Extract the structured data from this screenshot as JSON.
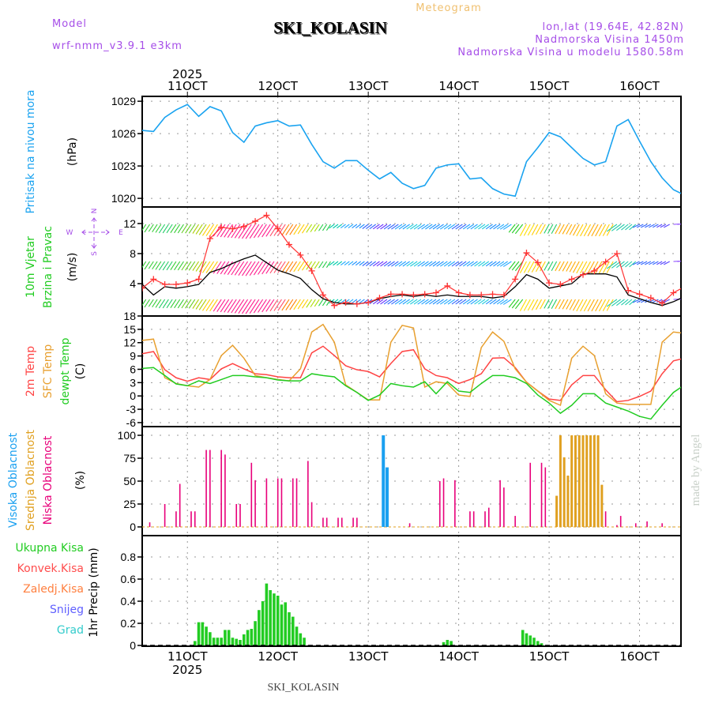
{
  "header": {
    "meteogram": "Meteogram",
    "model_label": "Model",
    "model_name": "wrf-nmm_v3.9.1  e3km",
    "station": "SKI_KOLASIN",
    "lonlat": "lon,lat (19.64E, 42.82N)",
    "elevation": "Nadmorska Visina 1450m",
    "model_elevation": "Nadmorska Visina u modelu 1580.58m",
    "footer_station": "SKI_KOLASIN",
    "credit": "made by Angel"
  },
  "colors": {
    "purple": "#a64ee8",
    "orange": "#f0b860",
    "pressure": "#1aa3f0",
    "green": "#22cc22",
    "red": "#ff4444",
    "sfc": "#e8a030",
    "pink": "#e8007a",
    "mid_cloud": "#e0a020",
    "high_cloud": "#1aa0f0"
  },
  "labels": {
    "pressure": "Pritisak na nivou mora",
    "pressure_unit": "(hPa)",
    "wind1": "10m Vjetar",
    "wind2": "Brzina i Pravac",
    "wind_unit": "(m/s)",
    "compass_n": "N",
    "compass_s": "S",
    "compass_w": "W",
    "compass_e": "E",
    "temp_2m": "2m Temp",
    "temp_sfc": "SFC Temp",
    "temp_dew": "dewpt Temp",
    "temp_unit": "(C)",
    "cloud_high": "Visoka Oblacnost",
    "cloud_mid": "Srednja Oblacnost",
    "cloud_low": "Niska Oblacnost",
    "cloud_unit": "(%)",
    "precip_total": "Ukupna  Kisa",
    "precip_conv": "Konvek.Kisa",
    "precip_frz": "Zaledj.Kisa",
    "precip_snow": "Snijeg",
    "precip_hail": "Grad",
    "precip_unit": "1hr Precip (mm)"
  },
  "chart_data": {
    "type": "line",
    "x_unit": "hours from start of axis (step 3h)",
    "xlim": [
      0,
      143
    ],
    "year": "2025",
    "date_ticks": [
      {
        "hour": 12,
        "label": "11OCT"
      },
      {
        "hour": 36,
        "label": "12OCT"
      },
      {
        "hour": 60,
        "label": "13OCT"
      },
      {
        "hour": 84,
        "label": "14OCT"
      },
      {
        "hour": 108,
        "label": "15OCT"
      },
      {
        "hour": 132,
        "label": "16OCT"
      }
    ],
    "panels": {
      "pressure": {
        "ylabel": "Pritisak na nivou mora (hPa)",
        "ylim": [
          1019.2,
          1029.45
        ],
        "ticks": [
          1020,
          1023,
          1026,
          1029
        ],
        "series": [
          {
            "name": "MSLP",
            "color": "#1aa3f0",
            "values": [
              1026.3,
              1026.2,
              1027.5,
              1028.2,
              1028.7,
              1027.6,
              1028.5,
              1028.1,
              1026.1,
              1025.2,
              1026.7,
              1027.0,
              1027.2,
              1026.7,
              1026.8,
              1025.0,
              1023.4,
              1022.8,
              1023.5,
              1023.5,
              1022.6,
              1021.8,
              1022.4,
              1021.4,
              1020.9,
              1021.2,
              1022.8,
              1023.1,
              1023.2,
              1021.8,
              1021.9,
              1020.9,
              1020.4,
              1020.2,
              1023.4,
              1024.7,
              1026.1,
              1025.7,
              1024.7,
              1023.7,
              1023.1,
              1023.4,
              1026.7,
              1027.3,
              1025.3,
              1023.4,
              1021.9,
              1020.8,
              1020.3
            ]
          }
        ]
      },
      "wind": {
        "ylabel": "10m Vjetar Brzina i Pravac (m/s)",
        "ylim": [
          -0.3,
          14.2
        ],
        "ticks": [
          4,
          8,
          12
        ],
        "speed": {
          "name": "speed",
          "color": "#000000",
          "values": [
            3.9,
            2.5,
            3.6,
            3.4,
            3.6,
            3.9,
            5.5,
            6.0,
            6.7,
            7.3,
            7.8,
            6.8,
            5.8,
            5.3,
            4.7,
            3.2,
            2.0,
            1.5,
            1.3,
            1.3,
            1.5,
            2.0,
            2.3,
            2.5,
            2.3,
            2.5,
            2.3,
            2.5,
            2.3,
            2.3,
            2.3,
            2.1,
            2.3,
            3.6,
            5.2,
            4.6,
            3.4,
            3.7,
            4.0,
            5.3,
            5.3,
            5.3,
            4.9,
            2.5,
            2.0,
            1.5,
            1.1,
            1.6,
            2.3
          ]
        },
        "gust": {
          "name": "gust",
          "color": "#ff3333",
          "values": [
            3.4,
            4.6,
            3.9,
            3.9,
            4.1,
            4.6,
            10.0,
            11.5,
            11.3,
            11.6,
            12.3,
            13.1,
            11.3,
            9.2,
            7.8,
            5.7,
            2.5,
            1.1,
            1.5,
            1.3,
            1.5,
            2.1,
            2.6,
            2.6,
            2.5,
            2.6,
            2.8,
            3.7,
            2.8,
            2.5,
            2.5,
            2.6,
            2.5,
            4.6,
            8.1,
            6.8,
            4.1,
            3.9,
            4.6,
            5.2,
            5.7,
            6.9,
            8.0,
            3.1,
            2.6,
            2.1,
            1.4,
            2.8,
            3.6
          ]
        },
        "direction_deg": [
          40,
          40,
          40,
          40,
          40,
          40,
          40,
          40,
          40,
          40,
          40,
          40,
          40,
          40,
          40,
          40,
          40,
          60,
          60,
          60,
          75,
          75,
          75,
          75,
          75,
          75,
          75,
          75,
          75,
          75,
          75,
          75,
          75,
          45,
          35,
          35,
          35,
          35,
          35,
          35,
          35,
          35,
          70,
          70,
          85,
          85,
          85,
          250,
          250
        ],
        "barb_colors": [
          "#33cc33",
          "#33cc33",
          "#22cc66",
          "#33cc33",
          "#66cc22",
          "#aacc00",
          "#ffcc00",
          "#ff1a8c",
          "#ff1a8c",
          "#ff1a8c",
          "#ff1a8c",
          "#ff1a8c",
          "#ff4d6a",
          "#ff7f00",
          "#ffcc00",
          "#aadd00",
          "#22cc44",
          "#00ccaa",
          "#22aaff",
          "#1e90ff",
          "#3366ff",
          "#6633ff",
          "#3366ff",
          "#1ea0ff",
          "#22ccdd",
          "#1ea0ff",
          "#1e90ff",
          "#22aaff",
          "#3366ff",
          "#1ea0ff",
          "#22ccdd",
          "#1e90ff",
          "#22aaff",
          "#22cc22",
          "#ffdd00",
          "#ffcc00",
          "#22cc66",
          "#ffaa00",
          "#ffaa00",
          "#ffcc00",
          "#ffaa00",
          "#ffcc00",
          "#22ccaa",
          "#22ccaa",
          "#3366ff",
          "#3366ff",
          "#5544ff",
          "#8844ff",
          "#8844ff"
        ]
      },
      "temperature": {
        "ylabel": "(C)",
        "ylim": [
          -6.9,
          18
        ],
        "ticks": [
          -6,
          -3,
          0,
          3,
          6,
          9,
          12,
          15,
          18
        ],
        "series": [
          {
            "name": "2m Temp",
            "color": "#ff4444",
            "values": [
              9.5,
              10.0,
              5.9,
              4.1,
              3.3,
              4.1,
              3.7,
              6.1,
              7.3,
              6.1,
              5.0,
              4.8,
              4.3,
              4.1,
              4.1,
              9.7,
              11.2,
              9.1,
              6.8,
              5.9,
              5.5,
              4.3,
              7.3,
              10.0,
              10.4,
              6.1,
              4.6,
              4.1,
              2.8,
              3.7,
              5.0,
              8.5,
              8.6,
              6.4,
              3.1,
              1.1,
              -0.7,
              -1.0,
              2.5,
              4.6,
              4.6,
              1.4,
              -1.3,
              -1.0,
              -0.1,
              1.1,
              5.0,
              7.9,
              8.5
            ]
          },
          {
            "name": "SFC Temp",
            "color": "#e8a030",
            "values": [
              12.5,
              12.8,
              4.1,
              2.8,
              2.3,
              2.0,
              3.7,
              9.1,
              11.4,
              8.5,
              4.6,
              4.1,
              3.7,
              3.4,
              6.1,
              14.4,
              16.1,
              12.1,
              2.5,
              0.8,
              -0.9,
              -0.9,
              12.1,
              15.9,
              15.3,
              2.0,
              3.2,
              2.8,
              0.2,
              -0.1,
              10.9,
              14.4,
              12.3,
              6.1,
              3.1,
              1.1,
              -1.0,
              -2.1,
              8.5,
              11.2,
              9.1,
              0.5,
              -1.6,
              -1.9,
              -1.9,
              -1.9,
              12.1,
              14.4,
              14.1
            ]
          },
          {
            "name": "dewpt Temp",
            "color": "#22cc22",
            "values": [
              6.2,
              6.4,
              4.6,
              2.7,
              2.3,
              3.4,
              2.8,
              3.7,
              4.6,
              4.6,
              4.3,
              4.1,
              3.6,
              3.4,
              3.4,
              5.0,
              4.6,
              4.3,
              2.3,
              0.8,
              -1.0,
              0.2,
              2.8,
              2.3,
              2.0,
              3.2,
              0.5,
              3.2,
              1.1,
              0.8,
              2.8,
              4.6,
              4.6,
              4.1,
              2.8,
              0.2,
              -1.6,
              -3.9,
              -2.1,
              0.5,
              0.5,
              -1.6,
              -2.5,
              -3.4,
              -4.6,
              -5.2,
              -2.1,
              0.8,
              2.5
            ]
          }
        ]
      },
      "cloud": {
        "type": "bar",
        "ylabel": "(%)",
        "ylim": [
          -9.5,
          109.5
        ],
        "ticks": [
          0,
          25,
          50,
          75,
          100
        ],
        "low": {
          "color": "#e8007a",
          "bars": [
            [
              2,
              5
            ],
            [
              6,
              25
            ],
            [
              9,
              17
            ],
            [
              10,
              47
            ],
            [
              13,
              17
            ],
            [
              14,
              17
            ],
            [
              17,
              84
            ],
            [
              18,
              84
            ],
            [
              21,
              84
            ],
            [
              22,
              79
            ],
            [
              25,
              25
            ],
            [
              26,
              25
            ],
            [
              29,
              70
            ],
            [
              30,
              51
            ],
            [
              33,
              53
            ],
            [
              36,
              53
            ],
            [
              37,
              53
            ],
            [
              40,
              53
            ],
            [
              41,
              53
            ],
            [
              44,
              72
            ],
            [
              45,
              27
            ],
            [
              48,
              10
            ],
            [
              49,
              10
            ],
            [
              52,
              10
            ],
            [
              53,
              10
            ],
            [
              56,
              10
            ],
            [
              57,
              10
            ],
            [
              71,
              4
            ],
            [
              79,
              50
            ],
            [
              80,
              53
            ],
            [
              83,
              51
            ],
            [
              87,
              17
            ],
            [
              88,
              17
            ],
            [
              91,
              17
            ],
            [
              92,
              21
            ],
            [
              95,
              51
            ],
            [
              96,
              43
            ],
            [
              99,
              12
            ],
            [
              103,
              70
            ],
            [
              106,
              70
            ],
            [
              107,
              65
            ],
            [
              110,
              16
            ],
            [
              111,
              16
            ],
            [
              119,
              43
            ],
            [
              122,
              17
            ],
            [
              123,
              17
            ],
            [
              126,
              2
            ],
            [
              127,
              12
            ],
            [
              131,
              4
            ],
            [
              134,
              6
            ],
            [
              138,
              4
            ]
          ]
        },
        "mid": {
          "color": "#e0a020",
          "bars": [
            [
              110,
              34
            ],
            [
              111,
              100
            ],
            [
              112,
              76
            ],
            [
              113,
              56
            ],
            [
              114,
              100
            ],
            [
              115,
              100
            ],
            [
              116,
              100
            ],
            [
              117,
              100
            ],
            [
              118,
              100
            ],
            [
              119,
              100
            ],
            [
              120,
              100
            ],
            [
              121,
              100
            ],
            [
              122,
              46
            ]
          ]
        },
        "high": {
          "color": "#1aa0f0",
          "bars": [
            [
              64,
              100
            ],
            [
              65,
              65
            ]
          ]
        }
      },
      "precip": {
        "type": "bar",
        "ylabel": "1hr Precip (mm)",
        "ylim": [
          -0.007,
          0.993
        ],
        "ticks": [
          0,
          0.2,
          0.4,
          0.6,
          0.8
        ],
        "color": "#22cc22",
        "bars": [
          {
            "start_hour": 14,
            "values": [
              0.04,
              0.21,
              0.21,
              0.17,
              0.12,
              0.07,
              0.07,
              0.07,
              0.14,
              0.14,
              0.07,
              0.06,
              0.05,
              0.1,
              0.14,
              0.15,
              0.22,
              0.32,
              0.4,
              0.56,
              0.5,
              0.47,
              0.45,
              0.37,
              0.39,
              0.3,
              0.26,
              0.17,
              0.11,
              0.07
            ]
          },
          {
            "start_hour": 80,
            "values": [
              0.03,
              0.05,
              0.04
            ]
          },
          {
            "start_hour": 101,
            "values": [
              0.14,
              0.11,
              0.09,
              0.07,
              0.04,
              0.02
            ]
          }
        ]
      }
    }
  }
}
